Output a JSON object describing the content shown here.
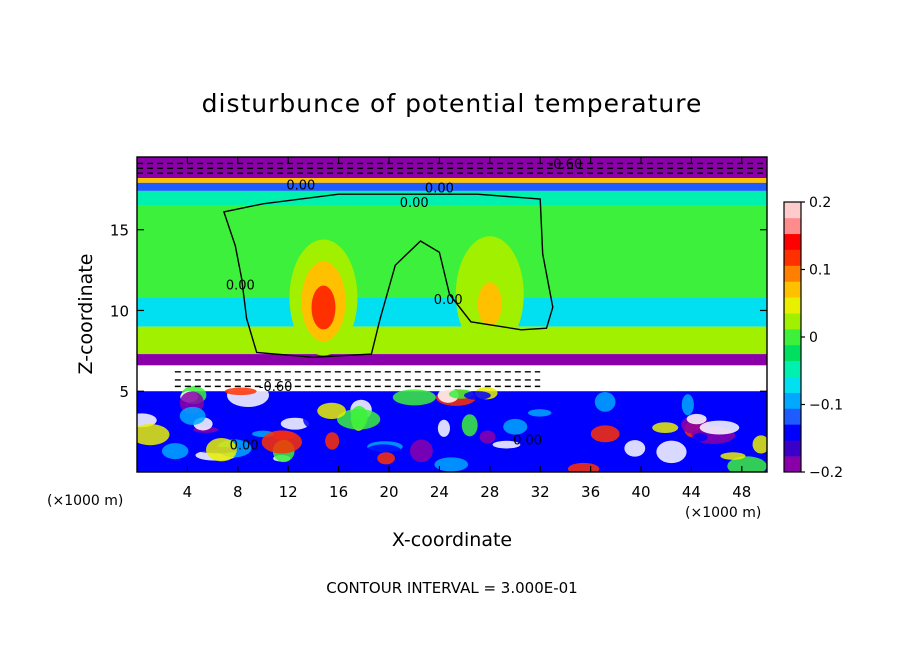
{
  "chart_data": {
    "type": "heatmap",
    "title": "disturbunce of potential temperature",
    "xlabel": "X-coordinate",
    "ylabel": "Z-coordinate",
    "x_unit": "(×1000 m)",
    "x_unit_right": "(×1000 m)",
    "footer": "CONTOUR INTERVAL = 3.000E-01",
    "xlim": [
      0,
      50
    ],
    "ylim": [
      0,
      19.5
    ],
    "x_ticks": [
      4,
      8,
      12,
      16,
      20,
      24,
      28,
      32,
      36,
      40,
      44,
      48
    ],
    "y_ticks": [
      5,
      10,
      15
    ],
    "colorbar": {
      "range": [
        -0.2,
        0.2
      ],
      "tick_values": [
        0.2,
        0.1,
        0,
        -0.1,
        -0.2
      ],
      "tick_labels": [
        "0.2",
        "0.1",
        "0",
        "−0.1",
        "−0.2"
      ],
      "colors": [
        "#8a00a8",
        "#3a00c8",
        "#0000ff",
        "#1e5cff",
        "#00a8ff",
        "#00e0f0",
        "#00f0b0",
        "#00e060",
        "#3cf03c",
        "#a0f000",
        "#e8f000",
        "#ffc000",
        "#ff8000",
        "#ff3000",
        "#ff0000",
        "#ff8c8c",
        "#ffcccc"
      ]
    },
    "layers": [
      {
        "z": [
          18.2,
          19.5
        ],
        "value": -0.25
      },
      {
        "z": [
          17.9,
          18.2
        ],
        "value": 0.08
      },
      {
        "z": [
          17.4,
          17.9
        ],
        "value": -0.12
      },
      {
        "z": [
          16.5,
          17.4
        ],
        "value": -0.04
      },
      {
        "z": [
          10.8,
          16.5
        ],
        "value": 0.0
      },
      {
        "z": [
          9.0,
          10.8
        ],
        "value": -0.07
      },
      {
        "z": [
          7.3,
          9.0
        ],
        "value": 0.02
      },
      {
        "z": [
          6.6,
          7.3
        ],
        "value": -0.18
      },
      {
        "z": [
          5.0,
          6.6
        ],
        "value": -0.3
      },
      {
        "z": [
          0.0,
          5.0
        ],
        "value": -0.15
      }
    ],
    "warm_cores": [
      {
        "x": 14.8,
        "z": 10.8,
        "value": 0.12
      },
      {
        "x": 28.0,
        "z": 11.0,
        "value": 0.06
      }
    ],
    "contour_labels": [
      {
        "x": 13.0,
        "z": 17.5,
        "text": "0.00"
      },
      {
        "x": 24.0,
        "z": 17.3,
        "text": "0.00"
      },
      {
        "x": 22.0,
        "z": 16.4,
        "text": "0.00"
      },
      {
        "x": 34.0,
        "z": 18.8,
        "text": "-0.60"
      },
      {
        "x": 8.2,
        "z": 11.3,
        "text": "0.00"
      },
      {
        "x": 24.7,
        "z": 10.4,
        "text": "0.00"
      },
      {
        "x": 11.0,
        "z": 5.0,
        "text": "-0.60"
      },
      {
        "x": 8.5,
        "z": 1.4,
        "text": "0.00"
      },
      {
        "x": 31.0,
        "z": 1.7,
        "text": "0.00"
      }
    ]
  }
}
